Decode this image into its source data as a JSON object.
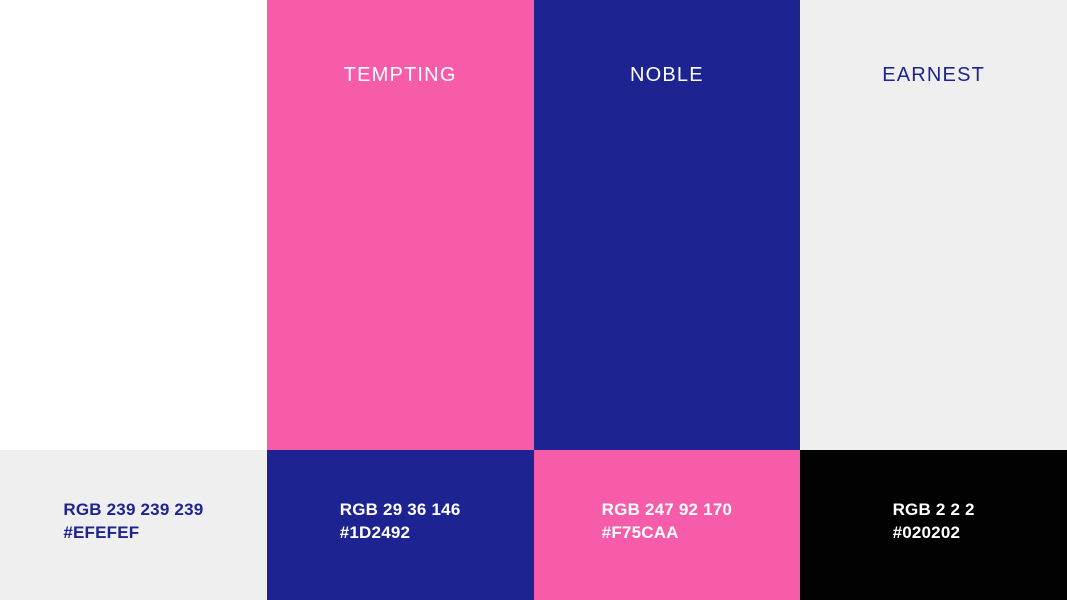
{
  "columns": [
    {
      "name": "",
      "name_color": "#1D2492",
      "swatch": {
        "color": "#FFFFFF"
      },
      "strip": {
        "color": "#EFEFEF",
        "text_color": "#1D2492",
        "rgb": "RGB 239 239 239",
        "hex": "#EFEFEF"
      }
    },
    {
      "name": "TEMPTING",
      "name_color": "#FFFFFF",
      "swatch": {
        "color": "#F75CAA"
      },
      "strip": {
        "color": "#1D2492",
        "text_color": "#FFFFFF",
        "rgb": "RGB 29 36 146",
        "hex": "#1D2492"
      }
    },
    {
      "name": "NOBLE",
      "name_color": "#FFFFFF",
      "swatch": {
        "color": "#1D2492"
      },
      "strip": {
        "color": "#F75CAA",
        "text_color": "#FFFFFF",
        "rgb": "RGB 247 92 170",
        "hex": "#F75CAA"
      }
    },
    {
      "name": "EARNEST",
      "name_color": "#1D2492",
      "swatch": {
        "color": "#EFEFEF"
      },
      "strip": {
        "color": "#020202",
        "text_color": "#FFFFFF",
        "rgb": "RGB 2 2 2",
        "hex": "#020202"
      }
    }
  ]
}
